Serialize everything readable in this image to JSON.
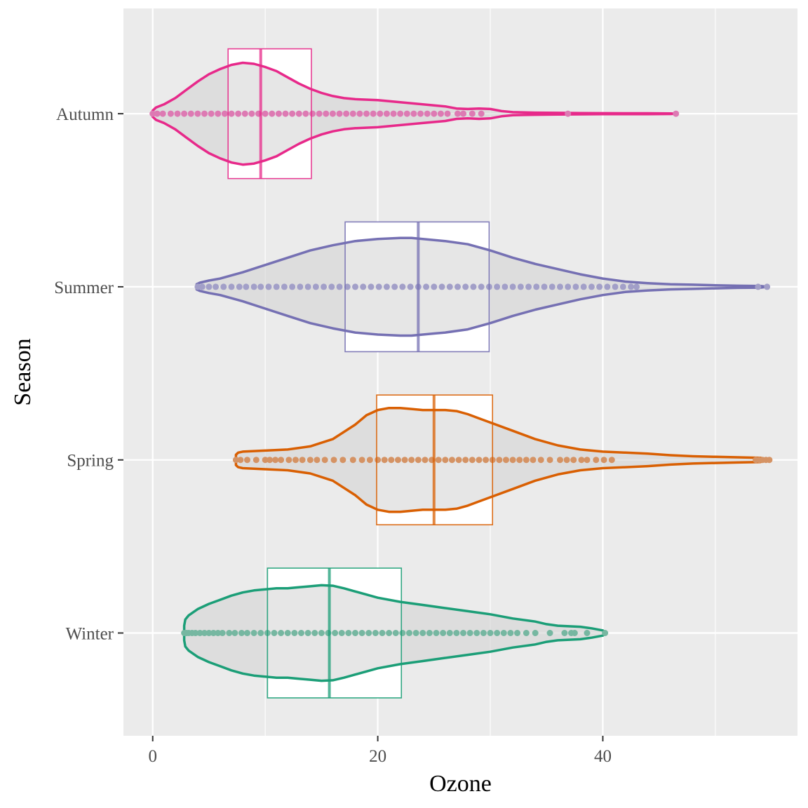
{
  "chart_data": {
    "type": "violin",
    "xlabel": "Ozone",
    "ylabel": "Season",
    "xlim": [
      -2.6,
      57.3
    ],
    "x_ticks": [
      0,
      20,
      40
    ],
    "x_grid_major": [
      0,
      20,
      40
    ],
    "x_grid_minor": [
      10,
      30,
      50
    ],
    "grid": true,
    "background": "#ebebeb",
    "categories": [
      "Winter",
      "Spring",
      "Summer",
      "Autumn"
    ],
    "series": [
      {
        "name": "Winter",
        "color": "#1b9e77",
        "point_color": "#76b7a1",
        "box": {
          "q1": 10.2,
          "median": 15.7,
          "q3": 22.1
        },
        "violin": {
          "x": [
            2.8,
            2.9,
            3.2,
            4,
            5,
            6,
            7,
            8,
            9,
            10,
            11,
            12,
            13,
            14,
            15,
            16,
            17,
            18,
            19,
            20,
            22,
            24,
            26,
            28,
            30,
            32,
            34,
            35,
            36,
            37,
            38,
            39,
            40,
            40.3
          ],
          "hw": [
            0.07,
            0.13,
            0.17,
            0.23,
            0.28,
            0.32,
            0.36,
            0.39,
            0.41,
            0.42,
            0.43,
            0.43,
            0.44,
            0.45,
            0.46,
            0.455,
            0.43,
            0.4,
            0.37,
            0.34,
            0.3,
            0.27,
            0.24,
            0.21,
            0.18,
            0.14,
            0.11,
            0.085,
            0.07,
            0.065,
            0.06,
            0.045,
            0.025,
            0.0
          ]
        },
        "points": [
          2.8,
          3.0,
          3.2,
          3.5,
          3.8,
          4.2,
          4.6,
          5.0,
          5.4,
          5.8,
          6.2,
          6.8,
          7.3,
          7.9,
          8.4,
          9.0,
          9.6,
          10.2,
          10.8,
          11.4,
          12.0,
          12.6,
          13.2,
          13.8,
          14.4,
          15.0,
          15.6,
          16.2,
          16.8,
          17.4,
          18.0,
          18.6,
          19.2,
          19.8,
          20.4,
          21.0,
          21.6,
          22.2,
          22.8,
          23.4,
          24.0,
          24.6,
          25.2,
          25.8,
          26.4,
          27.0,
          27.6,
          28.2,
          28.8,
          29.4,
          30.0,
          30.6,
          31.2,
          31.8,
          32.4,
          33.2,
          34.0,
          35.3,
          36.6,
          37.2,
          37.5,
          38.6,
          40.2
        ]
      },
      {
        "name": "Spring",
        "color": "#d95f02",
        "point_color": "#d59364",
        "box": {
          "q1": 19.9,
          "median": 25.0,
          "q3": 30.2
        },
        "violin": {
          "x": [
            7.4,
            7.6,
            8,
            10,
            12,
            14,
            16,
            18,
            19,
            20,
            21,
            22,
            23,
            24,
            25,
            26,
            27,
            28,
            29,
            30,
            32,
            34,
            36,
            38,
            40,
            42,
            44,
            46,
            48,
            50,
            52,
            54,
            54.8
          ],
          "hw": [
            0.05,
            0.07,
            0.08,
            0.09,
            0.1,
            0.13,
            0.2,
            0.34,
            0.43,
            0.48,
            0.5,
            0.5,
            0.49,
            0.48,
            0.48,
            0.48,
            0.47,
            0.44,
            0.4,
            0.36,
            0.28,
            0.2,
            0.14,
            0.1,
            0.08,
            0.07,
            0.06,
            0.045,
            0.035,
            0.03,
            0.025,
            0.02,
            0.0
          ]
        },
        "points": [
          7.4,
          7.8,
          8.4,
          9.2,
          10.0,
          10.4,
          10.9,
          11.4,
          12.1,
          12.7,
          13.3,
          14.0,
          14.6,
          15.3,
          16.1,
          16.9,
          17.8,
          18.6,
          19.3,
          20.0,
          20.6,
          21.2,
          21.8,
          22.4,
          23.0,
          23.6,
          24.2,
          24.8,
          25.4,
          26.0,
          26.6,
          27.2,
          27.8,
          28.4,
          29.0,
          29.6,
          30.2,
          30.8,
          31.4,
          32.0,
          32.6,
          33.2,
          33.8,
          34.5,
          35.3,
          36.2,
          36.8,
          37.4,
          38.1,
          38.6,
          39.4,
          40.1,
          40.8,
          53.6,
          53.9,
          54.2,
          54.5,
          54.8
        ]
      },
      {
        "name": "Summer",
        "color": "#7570b3",
        "point_color": "#a29fc8",
        "box": {
          "q1": 17.1,
          "median": 23.6,
          "q3": 29.9
        },
        "violin": {
          "x": [
            3.9,
            4.2,
            5,
            6,
            8,
            10,
            12,
            14,
            16,
            18,
            20,
            22,
            23,
            24,
            25,
            26,
            28,
            30,
            32,
            34,
            36,
            38,
            40,
            42,
            44,
            46,
            48,
            50,
            52,
            54,
            54.6
          ],
          "hw": [
            0.025,
            0.04,
            0.06,
            0.08,
            0.14,
            0.21,
            0.28,
            0.35,
            0.4,
            0.44,
            0.46,
            0.47,
            0.47,
            0.46,
            0.45,
            0.44,
            0.41,
            0.35,
            0.28,
            0.22,
            0.17,
            0.12,
            0.08,
            0.05,
            0.035,
            0.025,
            0.02,
            0.015,
            0.01,
            0.008,
            0.0
          ]
        },
        "points": [
          4.0,
          4.4,
          5.0,
          5.6,
          6.3,
          7.0,
          7.7,
          8.3,
          9.0,
          9.6,
          10.3,
          11.0,
          11.7,
          12.4,
          13.1,
          13.8,
          14.5,
          15.2,
          15.9,
          16.6,
          17.3,
          18.0,
          18.7,
          19.4,
          20.1,
          20.8,
          21.5,
          22.2,
          22.9,
          23.6,
          24.3,
          25.0,
          25.7,
          26.4,
          27.1,
          27.8,
          28.5,
          29.2,
          29.9,
          30.6,
          31.3,
          32.0,
          32.7,
          33.4,
          34.1,
          34.8,
          35.5,
          36.2,
          36.9,
          37.6,
          38.3,
          39.0,
          39.7,
          40.4,
          41.1,
          41.8,
          42.5,
          43.0,
          53.8,
          54.6
        ]
      },
      {
        "name": "Autumn",
        "color": "#e7298a",
        "point_color": "#dd7ab3",
        "box": {
          "q1": 6.7,
          "median": 9.6,
          "q3": 14.1
        },
        "violin": {
          "x": [
            0,
            0.3,
            1,
            2,
            3,
            4,
            5,
            6,
            7,
            8,
            9,
            10,
            11,
            12,
            13,
            14,
            15,
            16,
            17,
            18,
            20,
            22,
            24,
            26,
            27,
            28,
            29,
            30,
            31,
            32,
            33,
            34,
            36,
            38,
            40,
            42,
            44,
            46,
            46.5
          ],
          "hw": [
            0.03,
            0.06,
            0.09,
            0.15,
            0.23,
            0.31,
            0.38,
            0.43,
            0.47,
            0.49,
            0.48,
            0.45,
            0.41,
            0.35,
            0.29,
            0.24,
            0.2,
            0.17,
            0.15,
            0.14,
            0.13,
            0.11,
            0.09,
            0.07,
            0.05,
            0.045,
            0.05,
            0.045,
            0.025,
            0.015,
            0.012,
            0.01,
            0.008,
            0.006,
            0.005,
            0.004,
            0.004,
            0.003,
            0.0
          ]
        },
        "points": [
          0.0,
          0.4,
          0.9,
          1.6,
          2.2,
          2.8,
          3.4,
          4.0,
          4.6,
          5.2,
          5.8,
          6.4,
          7.0,
          7.6,
          8.2,
          8.8,
          9.4,
          10.0,
          10.6,
          11.2,
          11.8,
          12.4,
          13.0,
          13.6,
          14.2,
          14.8,
          15.4,
          16.0,
          16.6,
          17.2,
          17.8,
          18.4,
          19.0,
          19.6,
          20.2,
          20.8,
          21.4,
          22.0,
          22.6,
          23.2,
          23.8,
          24.4,
          25.0,
          25.6,
          26.2,
          27.1,
          27.6,
          28.4,
          29.2,
          36.9,
          46.5
        ]
      }
    ]
  }
}
